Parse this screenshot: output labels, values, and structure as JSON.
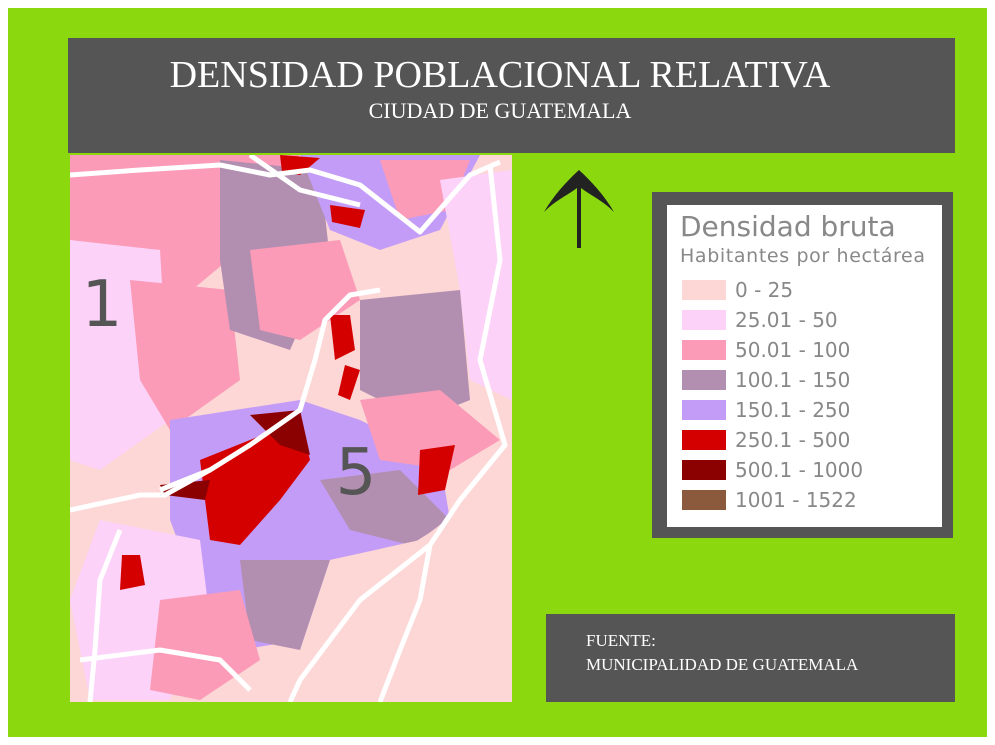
{
  "title": "DENSIDAD POBLACIONAL RELATIVA",
  "subtitle": "CIUDAD DE GUATEMALA",
  "legend": {
    "title": "Densidad bruta",
    "subtitle": "Habitantes por hectárea",
    "items": [
      {
        "label": "0 - 25",
        "color": "#fdd6d6"
      },
      {
        "label": "25.01 - 50",
        "color": "#fcd2f9"
      },
      {
        "label": "50.01 - 100",
        "color": "#fb9bb8"
      },
      {
        "label": "100.1 - 150",
        "color": "#b28fb0"
      },
      {
        "label": "150.1 - 250",
        "color": "#c39cf7"
      },
      {
        "label": "250.1 - 500",
        "color": "#d40000"
      },
      {
        "label": "500.1 - 1000",
        "color": "#8b0000"
      },
      {
        "label": "1001 - 1522",
        "color": "#8b5a3c"
      }
    ]
  },
  "zones": [
    "1",
    "5"
  ],
  "source": [
    "FUENTE:",
    "MUNICIPALIDAD DE GUATEMALA"
  ]
}
